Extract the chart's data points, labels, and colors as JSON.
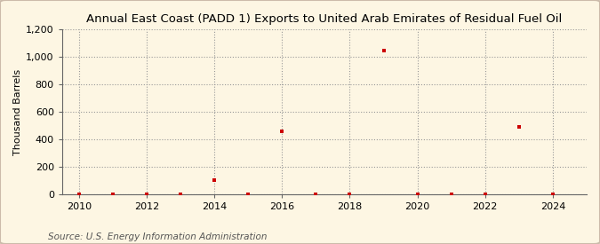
{
  "title": "Annual East Coast (PADD 1) Exports to United Arab Emirates of Residual Fuel Oil",
  "ylabel": "Thousand Barrels",
  "source": "Source: U.S. Energy Information Administration",
  "background_color": "#fdf6e3",
  "plot_bg_color": "#fdf6e3",
  "years": [
    2010,
    2011,
    2012,
    2013,
    2014,
    2015,
    2016,
    2017,
    2018,
    2019,
    2020,
    2021,
    2022,
    2023,
    2024
  ],
  "values": [
    0,
    2,
    0,
    2,
    103,
    0,
    462,
    2,
    2,
    1050,
    2,
    2,
    2,
    490,
    2
  ],
  "marker_color": "#cc0000",
  "ylim": [
    0,
    1200
  ],
  "yticks": [
    0,
    200,
    400,
    600,
    800,
    1000,
    1200
  ],
  "ytick_labels": [
    "0",
    "200",
    "400",
    "600",
    "800",
    "1,000",
    "1,200"
  ],
  "xticks": [
    2010,
    2012,
    2014,
    2016,
    2018,
    2020,
    2022,
    2024
  ],
  "xlim": [
    2009.5,
    2025.0
  ],
  "title_fontsize": 9.5,
  "axis_fontsize": 8,
  "source_fontsize": 7.5
}
